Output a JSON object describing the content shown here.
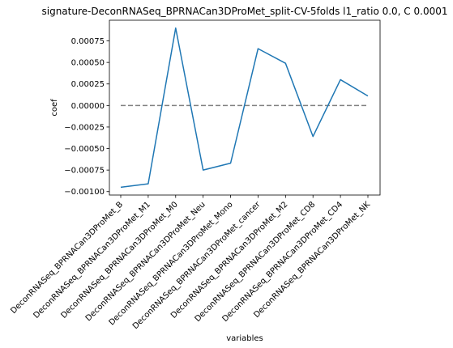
{
  "chart_data": {
    "type": "line",
    "title": "signature-DeconRNASeq_BPRNACan3DProMet_split-CV-5folds l1_ratio 0.0, C 0.0001",
    "xlabel": "variables",
    "ylabel": "coef",
    "categories": [
      "DeconRNASeq_BPRNACan3DProMet_B",
      "DeconRNASeq_BPRNACan3DProMet_M1",
      "DeconRNASeq_BPRNACan3DProMet_M0",
      "DeconRNASeq_BPRNACan3DProMet_Neu",
      "DeconRNASeq_BPRNACan3DProMet_Mono",
      "DeconRNASeq_BPRNACan3DProMet_cancer",
      "DeconRNASeq_BPRNACan3DProMet_M2",
      "DeconRNASeq_BPRNACan3DProMet_CD8",
      "DeconRNASeq_BPRNACan3DProMet_CD4",
      "DeconRNASeq_BPRNACan3DProMet_NK"
    ],
    "series": [
      {
        "values": [
          -0.00095,
          -0.00091,
          0.0009,
          -0.00075,
          -0.00067,
          0.00066,
          0.00049,
          -0.00036,
          0.0003,
          0.00011
        ],
        "color": "#1f77b4"
      }
    ],
    "reference_line": {
      "y": 0,
      "color": "#808080",
      "style": "dashed"
    },
    "ylim": [
      -0.00104,
      0.00099
    ],
    "yticks": [
      -0.001,
      -0.00075,
      -0.0005,
      -0.00025,
      0,
      0.00025,
      0.0005,
      0.00075
    ],
    "ytick_labels": [
      "−0.00100",
      "−0.00075",
      "−0.00050",
      "−0.00025",
      "0.00000",
      "0.00025",
      "0.00050",
      "0.00075"
    ],
    "grid": false,
    "legend": "none"
  }
}
